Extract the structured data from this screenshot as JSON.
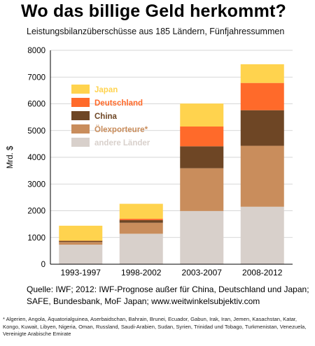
{
  "title": "Wo das billige Geld herkommt?",
  "subtitle": "Leistungsbilanzüberschüsse aus 185 Ländern, Fünfjahressummen",
  "source_line1": "Quelle: IWF; 2012: IWF-Prognose außer für China, Deutschland und Japan;",
  "source_line2": "SAFE, Bundesbank, MoF Japan; www.weitwinkelsubjektiv.com",
  "footnote": "* Algerien, Angola, Äquatorialguinea, Aserbaidschan, Bahrain, Brunei, Ecuador, Gabun, Irak, Iran, Jemen, Kasachstan, Katar, Kongo, Kuwait, Libyen, Nigeria, Oman, Russland, Saudi-Arabien, Sudan, Syrien, Trinidad und Tobago, Turkmenistan, Venezuela, Vereinigte Arabische Emirate",
  "chart_data": {
    "type": "bar",
    "stacked": true,
    "ylabel": "Mrd. $",
    "ylim": [
      0,
      8000
    ],
    "yticks": [
      0,
      1000,
      2000,
      3000,
      4000,
      5000,
      6000,
      7000,
      8000
    ],
    "grid": true,
    "legend_position": "top-left",
    "categories": [
      "1993-1997",
      "1998-2002",
      "2003-2007",
      "2008-2012"
    ],
    "series": [
      {
        "name": "andere Länder",
        "color": "#d8d0cb",
        "values": [
          730,
          1140,
          1990,
          2150
        ]
      },
      {
        "name": "Ölexporteure*",
        "color": "#c98d5c",
        "values": [
          100,
          410,
          1600,
          2280
        ]
      },
      {
        "name": "China",
        "color": "#6e4625",
        "values": [
          50,
          100,
          820,
          1330
        ]
      },
      {
        "name": "Deutschland",
        "color": "#ff6a2a",
        "values": [
          -10,
          50,
          740,
          1020
        ]
      },
      {
        "name": "Japan",
        "color": "#ffd34e",
        "values": [
          560,
          560,
          860,
          700
        ]
      }
    ]
  }
}
